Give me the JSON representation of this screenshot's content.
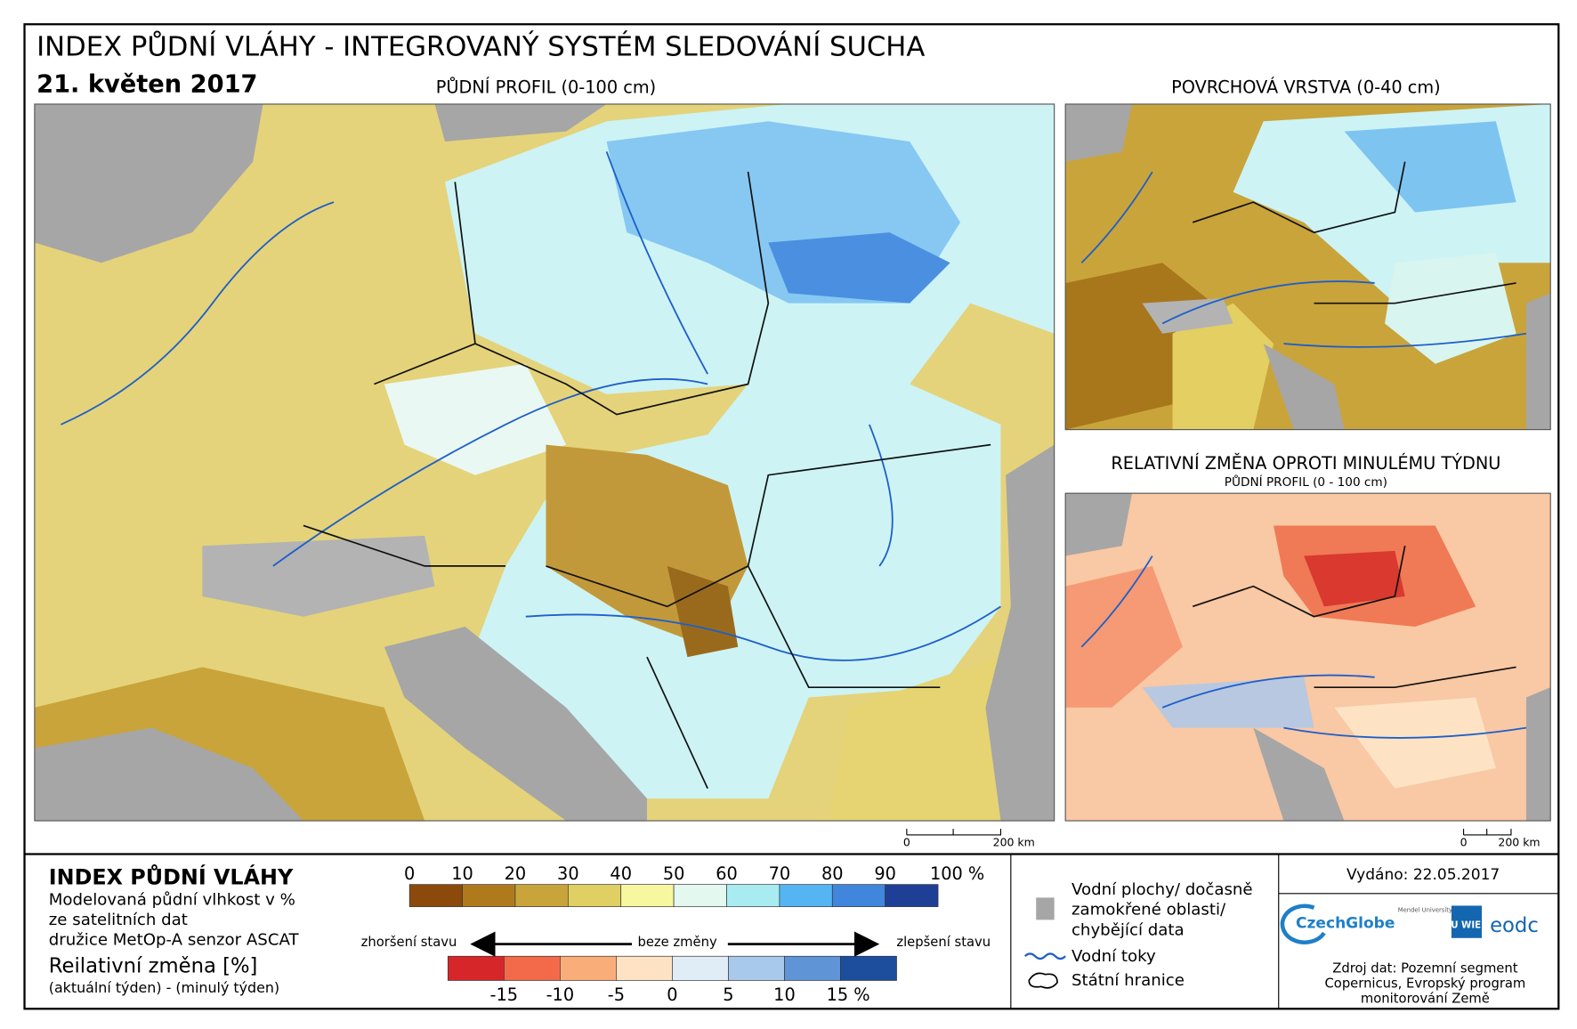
{
  "header": {
    "title": "INDEX PŮDNÍ VLÁHY - INTEGROVANÝ SYSTÉM SLEDOVÁNÍ SUCHA",
    "date": "21. květen 2017"
  },
  "maps": [
    {
      "title": "PŮDNÍ PROFIL (0-100 cm)",
      "scale": [
        "0",
        "200 km"
      ]
    },
    {
      "title": "POVRCHOVÁ VRSTVA (0-40 cm)"
    },
    {
      "title": "RELATIVNÍ ZMĚNA OPROTI MINULÉMU TÝDNU",
      "subtitle": "PŮDNÍ PROFIL (0 - 100 cm)",
      "scale": [
        "0",
        "200 km"
      ]
    }
  ],
  "legend": {
    "title": "INDEX PŮDNÍ VLÁHY",
    "lines": [
      "Modelovaná půdní vlhkost v %",
      "ze satelitních dat",
      "družice MetOp-A senzor ASCAT"
    ],
    "change_title": "Reilativní změna [%]",
    "change_note": "(aktuální týden) - (minulý týden)",
    "moisture_scale": {
      "labels": [
        0,
        10,
        20,
        30,
        40,
        50,
        60,
        70,
        80,
        90,
        {
          "value": 100,
          "label": "100 %"
        }
      ],
      "colors": [
        "#8b4a0c",
        "#b07a1c",
        "#c9a43a",
        "#e0cf62",
        "#f7f7a0",
        "#e3f8ef",
        "#a8ecf2",
        "#55b5f2",
        "#3f86dc",
        "#1f3f96"
      ]
    },
    "arrows": {
      "left": "zhoršení stavu",
      "center": "beze změny",
      "right": "zlepšení stavu"
    },
    "change_scale": {
      "labels": [
        -15,
        -10,
        -5,
        0,
        5,
        10,
        {
          "value": 15,
          "label": "15 %"
        }
      ],
      "colors": [
        "#d7262a",
        "#f26a4a",
        "#f9ae7a",
        "#fde3c4",
        "#e0ecf6",
        "#a9c9ea",
        "#5f95d6",
        "#1d4e9e"
      ]
    },
    "symbols": {
      "water": [
        "Vodní plochy/ dočasně",
        "zamokřené oblasti/",
        "chybějící data"
      ],
      "rivers": "Vodní toky",
      "borders": "Státní hranice"
    }
  },
  "footer": {
    "issued": "Vydáno: 22.05.2017",
    "logos": [
      "CzechGlobe",
      "Mendel University in Brno",
      "TU WIEN",
      "eodc"
    ],
    "source": [
      "Zdroj dat: Pozemní segment",
      "Copernicus, Evropský program",
      "monitorování Země"
    ]
  }
}
